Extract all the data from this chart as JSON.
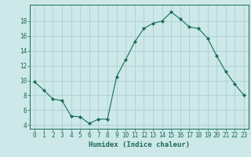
{
  "x": [
    0,
    1,
    2,
    3,
    4,
    5,
    6,
    7,
    8,
    9,
    10,
    11,
    12,
    13,
    14,
    15,
    16,
    17,
    18,
    19,
    20,
    21,
    22,
    23
  ],
  "y": [
    9.8,
    8.7,
    7.5,
    7.3,
    5.2,
    5.1,
    4.2,
    4.8,
    4.8,
    10.5,
    12.8,
    15.2,
    17.0,
    17.7,
    18.0,
    19.2,
    18.3,
    17.2,
    17.0,
    15.7,
    13.3,
    11.2,
    9.5,
    8.0
  ],
  "line_color": "#1a6b5a",
  "marker": "D",
  "marker_size": 2.0,
  "bg_color": "#cce8e8",
  "grid_color": "#aed0d0",
  "xlabel": "Humidex (Indice chaleur)",
  "xlim": [
    -0.5,
    23.5
  ],
  "ylim": [
    3.5,
    20.2
  ],
  "xticks": [
    0,
    1,
    2,
    3,
    4,
    5,
    6,
    7,
    8,
    9,
    10,
    11,
    12,
    13,
    14,
    15,
    16,
    17,
    18,
    19,
    20,
    21,
    22,
    23
  ],
  "yticks": [
    4,
    6,
    8,
    10,
    12,
    14,
    16,
    18
  ],
  "tick_color": "#1a6b5a",
  "tick_fontsize": 5.5,
  "xlabel_fontsize": 6.5
}
